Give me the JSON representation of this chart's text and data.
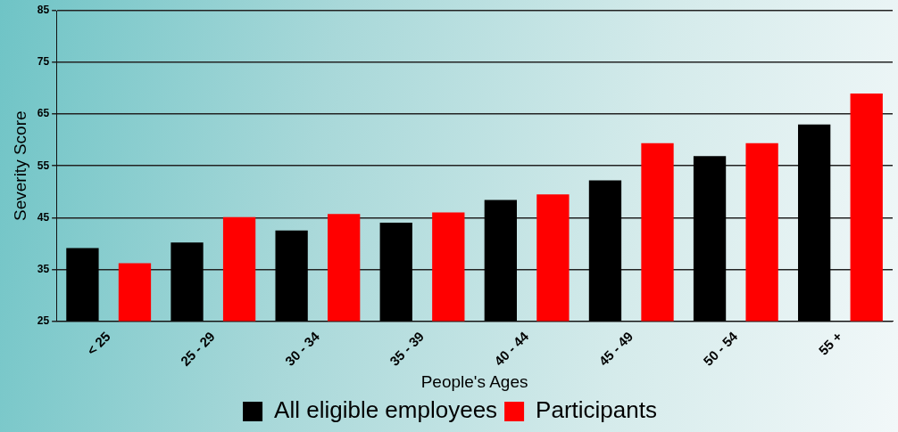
{
  "chart_data": {
    "type": "bar",
    "xlabel": "People's Ages",
    "ylabel": "Severity Score",
    "categories": [
      "< 25",
      "25 - 29",
      "30 - 34",
      "35 - 39",
      "40 - 44",
      "45 - 49",
      "50 - 54",
      "55 +"
    ],
    "series": [
      {
        "name": "All eligible employees",
        "color": "#000000",
        "values": [
          39.1,
          40.2,
          42.5,
          44,
          48.4,
          52.2,
          56.9,
          63
        ]
      },
      {
        "name": "Participants",
        "color": "#ff0000",
        "values": [
          36.2,
          45.1,
          45.7,
          46,
          49.5,
          59.4,
          59.4,
          69
        ]
      }
    ],
    "ylim": [
      25,
      85
    ],
    "yticks": [
      25,
      35,
      45,
      55,
      65,
      75,
      85
    ],
    "grid": "y",
    "legend": "bottom"
  }
}
